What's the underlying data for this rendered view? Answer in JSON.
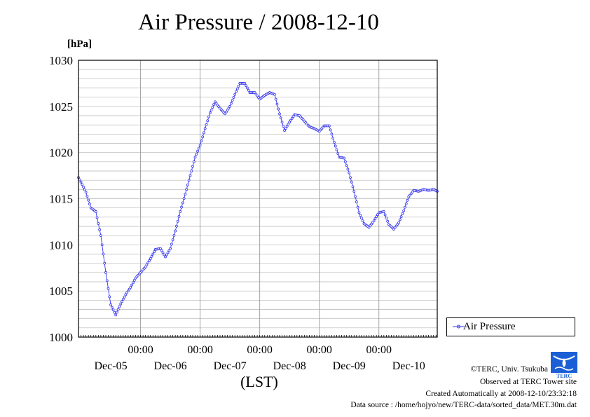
{
  "chart_data": {
    "type": "line",
    "title": "Air Pressure / 2008-12-10",
    "ylabel": "[hPa]",
    "xlabel": "(LST)",
    "ylim": [
      1000,
      1030
    ],
    "y_ticks": [
      1000,
      1005,
      1010,
      1015,
      1020,
      1025,
      1030
    ],
    "x_time_labels": [
      "00:00",
      "00:00",
      "00:00",
      "00:00",
      "00:00"
    ],
    "x_day_labels": [
      "Dec-05",
      "Dec-06",
      "Dec-07",
      "Dec-08",
      "Dec-09",
      "Dec-10"
    ],
    "xlim": [
      "2008-12-04T23:00",
      "2008-12-10T23:30"
    ],
    "grid": true,
    "legend_position": "right",
    "series": [
      {
        "name": "Air Pressure",
        "color": "#3333ee",
        "x": [
          "2008-12-04T23:00",
          "2008-12-05T00:00",
          "2008-12-05T02:00",
          "2008-12-05T04:00",
          "2008-12-05T06:00",
          "2008-12-05T08:00",
          "2008-12-05T10:00",
          "2008-12-05T12:00",
          "2008-12-05T14:00",
          "2008-12-05T16:00",
          "2008-12-05T18:00",
          "2008-12-05T20:00",
          "2008-12-05T22:00",
          "2008-12-06T00:00",
          "2008-12-06T02:00",
          "2008-12-06T04:00",
          "2008-12-06T06:00",
          "2008-12-06T08:00",
          "2008-12-06T10:00",
          "2008-12-06T12:00",
          "2008-12-06T14:00",
          "2008-12-06T16:00",
          "2008-12-06T18:00",
          "2008-12-06T20:00",
          "2008-12-06T22:00",
          "2008-12-07T00:00",
          "2008-12-07T02:00",
          "2008-12-07T04:00",
          "2008-12-07T06:00",
          "2008-12-07T08:00",
          "2008-12-07T10:00",
          "2008-12-07T12:00",
          "2008-12-07T14:00",
          "2008-12-07T16:00",
          "2008-12-07T18:00",
          "2008-12-07T20:00",
          "2008-12-07T22:00",
          "2008-12-08T00:00",
          "2008-12-08T02:00",
          "2008-12-08T04:00",
          "2008-12-08T06:00",
          "2008-12-08T08:00",
          "2008-12-08T10:00",
          "2008-12-08T12:00",
          "2008-12-08T14:00",
          "2008-12-08T16:00",
          "2008-12-08T18:00",
          "2008-12-08T20:00",
          "2008-12-08T22:00",
          "2008-12-09T00:00",
          "2008-12-09T02:00",
          "2008-12-09T04:00",
          "2008-12-09T06:00",
          "2008-12-09T08:00",
          "2008-12-09T10:00",
          "2008-12-09T12:00",
          "2008-12-09T14:00",
          "2008-12-09T16:00",
          "2008-12-09T18:00",
          "2008-12-09T20:00",
          "2008-12-09T22:00",
          "2008-12-10T00:00",
          "2008-12-10T02:00",
          "2008-12-10T04:00",
          "2008-12-10T06:00",
          "2008-12-10T08:00",
          "2008-12-10T10:00",
          "2008-12-10T12:00",
          "2008-12-10T14:00",
          "2008-12-10T16:00",
          "2008-12-10T18:00",
          "2008-12-10T20:00",
          "2008-12-10T22:00",
          "2008-12-10T23:30"
        ],
        "values": [
          1017.3,
          1016.8,
          1015.7,
          1014.0,
          1013.6,
          1011.0,
          1007.0,
          1003.5,
          1002.4,
          1003.6,
          1004.6,
          1005.4,
          1006.4,
          1007.0,
          1007.6,
          1008.5,
          1009.5,
          1009.6,
          1008.7,
          1009.6,
          1011.5,
          1013.6,
          1015.5,
          1017.5,
          1019.5,
          1020.8,
          1022.6,
          1024.3,
          1025.5,
          1024.8,
          1024.2,
          1025.0,
          1026.3,
          1027.5,
          1027.5,
          1026.5,
          1026.5,
          1025.8,
          1026.2,
          1026.5,
          1026.3,
          1024.2,
          1022.4,
          1023.3,
          1024.1,
          1024.0,
          1023.4,
          1022.8,
          1022.6,
          1022.3,
          1022.9,
          1022.9,
          1021.1,
          1019.5,
          1019.4,
          1017.8,
          1015.8,
          1013.5,
          1012.3,
          1011.9,
          1012.6,
          1013.5,
          1013.6,
          1012.2,
          1011.7,
          1012.4,
          1013.7,
          1015.2,
          1015.9,
          1015.8,
          1016.0,
          1015.9,
          1016.0,
          1015.8
        ]
      }
    ]
  },
  "credits": {
    "line1": "©TERC, Univ. Tsukuba",
    "line2": "Observed at TERC Tower site",
    "line3": "Created Automatically at 2008-12-10/23:32:18",
    "line4": "Data source : /home/hojyo/new/TERC-data/sorted_data/MET.30m.dat"
  },
  "logo": {
    "text": "TERC",
    "color": "#1a5fd6"
  }
}
